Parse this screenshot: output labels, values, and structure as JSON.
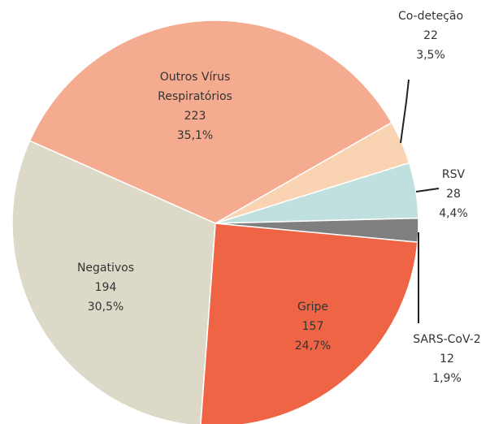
{
  "chart_data": {
    "type": "pie",
    "categories": [
      "Outros Vírus Respiratórios",
      "Co-deteção",
      "RSV",
      "SARS-CoV-2",
      "Gripe",
      "Negativos"
    ],
    "values": [
      223,
      22,
      28,
      12,
      157,
      194
    ],
    "shares": [
      35.1,
      3.5,
      4.4,
      1.9,
      24.7,
      30.5
    ],
    "share_labels": [
      "35,1%",
      "3,5%",
      "4,4%",
      "1,9%",
      "24,7%",
      "30,5%"
    ],
    "colors": [
      "#f4ab8f",
      "#fad3b3",
      "#bfe0de",
      "#7f7f7f",
      "#ef6444",
      "#ddd9c8"
    ]
  }
}
